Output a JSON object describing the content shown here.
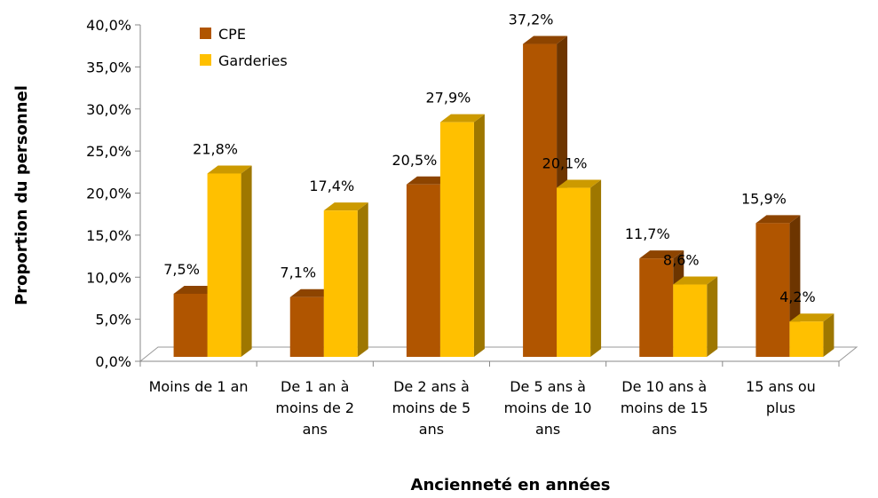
{
  "chart_data": {
    "type": "bar3d",
    "y_label": "Proportion du personnel",
    "x_label": "Ancienneté en années",
    "categories": [
      "Moins de 1 an",
      "De 1 an à moins de 2 ans",
      "De 2 ans à moins de 5 ans",
      "De 5 ans à moins de 10 ans",
      "De 10 ans à moins de 15 ans",
      "15 ans ou plus"
    ],
    "series": [
      {
        "name": "CPE",
        "color": "#b05500",
        "values": [
          7.5,
          7.1,
          20.5,
          37.2,
          11.7,
          15.9
        ],
        "value_labels": [
          "7,5%",
          "7,1%",
          "20,5%",
          "37,2%",
          "11,7%",
          "15,9%"
        ]
      },
      {
        "name": "Garderies",
        "color": "#ffc000",
        "values": [
          21.8,
          17.4,
          27.9,
          20.1,
          8.6,
          4.2
        ],
        "value_labels": [
          "21,8%",
          "17,4%",
          "27,9%",
          "20,1%",
          "8,6%",
          "4,2%"
        ]
      }
    ],
    "ylim": [
      0,
      40
    ],
    "yticks": [
      {
        "value": 0,
        "label": "0,0%"
      },
      {
        "value": 5,
        "label": "5,0%"
      },
      {
        "value": 10,
        "label": "10,0%"
      },
      {
        "value": 15,
        "label": "15,0%"
      },
      {
        "value": 20,
        "label": "20,0%"
      },
      {
        "value": 25,
        "label": "25,0%"
      },
      {
        "value": 30,
        "label": "30,0%"
      },
      {
        "value": 35,
        "label": "35,0%"
      },
      {
        "value": 40,
        "label": "40,0%"
      }
    ],
    "legend": "top-left"
  }
}
